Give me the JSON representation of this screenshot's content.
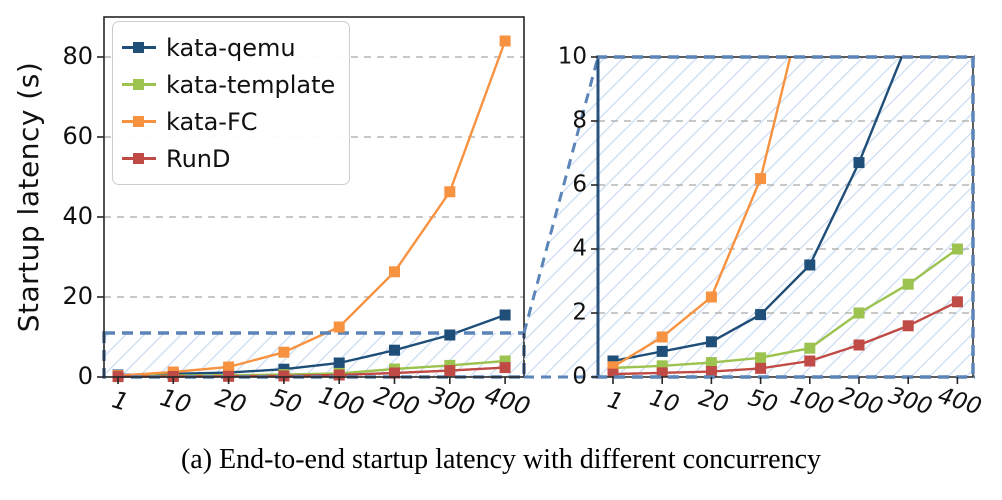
{
  "figure": {
    "caption": "(a)  End-to-end startup latency with different concurrency"
  },
  "chart_data": {
    "type": "line",
    "categories": [
      "1",
      "10",
      "20",
      "50",
      "100",
      "200",
      "300",
      "400"
    ],
    "xlabel": "",
    "series": [
      {
        "name": "kata-qemu",
        "color": "#1f4e79",
        "values": [
          0.5,
          0.8,
          1.1,
          1.95,
          3.5,
          6.7,
          10.5,
          15.5
        ]
      },
      {
        "name": "kata-template",
        "color": "#9cc34f",
        "values": [
          0.28,
          0.35,
          0.45,
          0.6,
          0.9,
          2.0,
          2.9,
          4.0
        ]
      },
      {
        "name": "kata-FC",
        "color": "#f79240",
        "values": [
          0.32,
          1.25,
          2.5,
          6.2,
          12.5,
          26.3,
          46.3,
          84.0
        ]
      },
      {
        "name": "RunD",
        "color": "#c04a45",
        "values": [
          0.09,
          0.13,
          0.17,
          0.27,
          0.5,
          1.0,
          1.6,
          2.35
        ]
      }
    ],
    "left_panel": {
      "ylabel": "Startup latency (s)",
      "ylim": [
        0,
        90
      ],
      "yticks": [
        0,
        20,
        40,
        60,
        80
      ],
      "grid": true
    },
    "right_panel": {
      "ylim": [
        0,
        10
      ],
      "yticks": [
        0,
        2,
        4,
        6,
        8,
        10
      ],
      "grid": true,
      "role": "zoom-inset"
    },
    "zoom_region": {
      "y_range": [
        0,
        11
      ],
      "border_color": "#5b84b8",
      "hatch_color": "#ccddf1"
    },
    "legend": {
      "position": "upper left"
    },
    "axis_color": "#262626",
    "grid_color": "#a8a8a8",
    "tick_label_color": "#111111"
  }
}
